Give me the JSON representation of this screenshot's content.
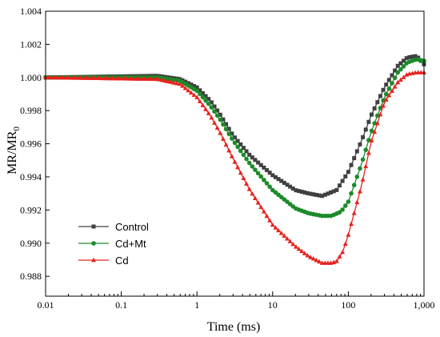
{
  "chart_data": {
    "type": "line",
    "xlabel": "Time (ms)",
    "ylabel": "MR/MR",
    "ylabel_subscript": "0",
    "x_scale": "log",
    "xlim": [
      0.01,
      1000
    ],
    "ylim": [
      0.9868,
      1.004
    ],
    "x_ticks": [
      0.01,
      0.1,
      1,
      10,
      100,
      1000
    ],
    "x_tick_labels": [
      "0.01",
      "0.1",
      "1",
      "10",
      "100",
      "1,000"
    ],
    "y_ticks": [
      0.988,
      0.99,
      0.992,
      0.994,
      0.996,
      0.998,
      1.0,
      1.002,
      1.004
    ],
    "y_tick_labels": [
      "0.988",
      "0.990",
      "0.992",
      "0.994",
      "0.996",
      "0.998",
      "1.000",
      "1.002",
      "1.004"
    ],
    "grid": false,
    "legend_position": "bottom-left",
    "series": [
      {
        "name": "Control",
        "color": "#404040",
        "marker": "square",
        "points": [
          [
            0.01,
            1.0
          ],
          [
            0.3,
            1.0001
          ],
          [
            0.6,
            0.9999
          ],
          [
            1,
            0.9994
          ],
          [
            1.5,
            0.9986
          ],
          [
            2,
            0.9978
          ],
          [
            3,
            0.9965
          ],
          [
            5,
            0.9953
          ],
          [
            10,
            0.9941
          ],
          [
            20,
            0.9932
          ],
          [
            30,
            0.993
          ],
          [
            45,
            0.99285
          ],
          [
            70,
            0.9932
          ],
          [
            100,
            0.9943
          ],
          [
            150,
            0.9962
          ],
          [
            200,
            0.9977
          ],
          [
            300,
            0.9994
          ],
          [
            450,
            1.0007
          ],
          [
            600,
            1.0012
          ],
          [
            800,
            1.0013
          ],
          [
            1000,
            1.0008
          ]
        ]
      },
      {
        "name": "Cd+Mt",
        "color": "#1c8a2a",
        "marker": "circle",
        "points": [
          [
            0.01,
            1.0
          ],
          [
            0.3,
            1.0
          ],
          [
            0.6,
            0.9998
          ],
          [
            1,
            0.9992
          ],
          [
            1.5,
            0.9983
          ],
          [
            2,
            0.9975
          ],
          [
            3,
            0.9962
          ],
          [
            5,
            0.9948
          ],
          [
            10,
            0.9932
          ],
          [
            20,
            0.9921
          ],
          [
            30,
            0.9918
          ],
          [
            45,
            0.99165
          ],
          [
            60,
            0.99165
          ],
          [
            80,
            0.9919
          ],
          [
            100,
            0.9925
          ],
          [
            150,
            0.9948
          ],
          [
            200,
            0.9967
          ],
          [
            300,
            0.9988
          ],
          [
            450,
            1.0003
          ],
          [
            600,
            1.0009
          ],
          [
            800,
            1.0011
          ],
          [
            1000,
            1.001
          ]
        ]
      },
      {
        "name": "Cd",
        "color": "#e8231e",
        "marker": "triangle",
        "points": [
          [
            0.01,
            1.0
          ],
          [
            0.3,
            0.9999
          ],
          [
            0.6,
            0.9996
          ],
          [
            1,
            0.9988
          ],
          [
            1.5,
            0.9977
          ],
          [
            2,
            0.9967
          ],
          [
            3,
            0.9951
          ],
          [
            5,
            0.9932
          ],
          [
            10,
            0.9911
          ],
          [
            20,
            0.9898
          ],
          [
            30,
            0.9892
          ],
          [
            45,
            0.9888
          ],
          [
            60,
            0.9888
          ],
          [
            70,
            0.9889
          ],
          [
            85,
            0.9895
          ],
          [
            100,
            0.9905
          ],
          [
            150,
            0.9935
          ],
          [
            200,
            0.9961
          ],
          [
            300,
            0.9985
          ],
          [
            450,
            0.9997
          ],
          [
            600,
            1.0002
          ],
          [
            800,
            1.0003
          ],
          [
            1000,
            1.0003
          ]
        ]
      }
    ]
  }
}
